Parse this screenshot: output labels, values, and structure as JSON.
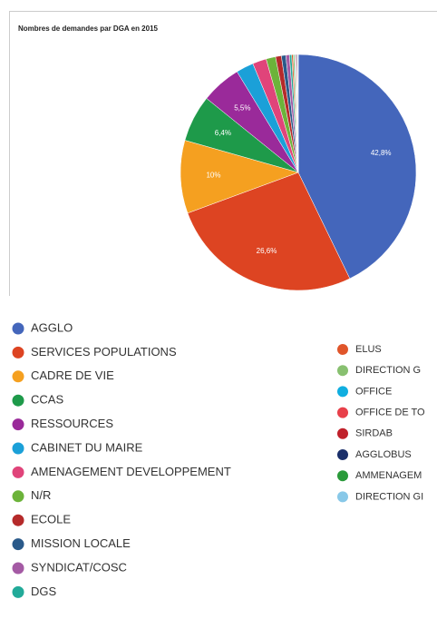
{
  "chart_data": {
    "type": "pie",
    "title": "Nombres de demandes par DGA en 2015",
    "categories": [
      "AGGLO",
      "SERVICES POPULATIONS",
      "CADRE DE VIE",
      "CCAS",
      "RESSOURCES",
      "CABINET DU MAIRE",
      "AMENAGEMENT DEVELOPPEMENT",
      "N/R",
      "ECOLE",
      "MISSION LOCALE",
      "SYNDICAT/COSC",
      "DGS",
      "ELUS",
      "DIRECTION G",
      "OFFICE",
      "OFFICE DE TO",
      "SIRDAB",
      "AGGLOBUS",
      "AMMENAGEM",
      "DIRECTION GI"
    ],
    "values": [
      42.8,
      26.6,
      10,
      6.4,
      5.5,
      2.4,
      1.9,
      1.3,
      0.8,
      0.6,
      0.5,
      0.3,
      0.2,
      0.2,
      0.1,
      0.1,
      0.1,
      0.1,
      0.05,
      0.05
    ],
    "value_labels": [
      "42,8%",
      "26,6%",
      "10%",
      "6,4%",
      "5,5%",
      null,
      null,
      null,
      null,
      null,
      null,
      null,
      null,
      null,
      null,
      null,
      null,
      null,
      null,
      null
    ],
    "colors": [
      "#4466bb",
      "#dd4422",
      "#f5a020",
      "#1e9a4a",
      "#9a2a9a",
      "#1ba0d8",
      "#e0447a",
      "#6cb33a",
      "#b52a2a",
      "#2a5a8a",
      "#a45aa4",
      "#22aa99",
      "#e0552a",
      "#88c070",
      "#10aee0",
      "#e8404a",
      "#c0202a",
      "#1a2f6a",
      "#2a9a3a",
      "#88c8e8"
    ]
  }
}
